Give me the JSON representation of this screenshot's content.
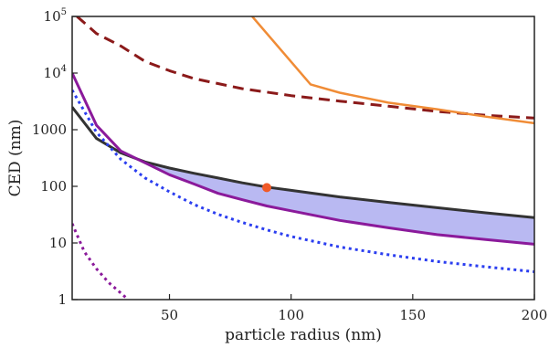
{
  "chart_data": {
    "type": "line",
    "title": "",
    "xlabel": "particle radius (nm)",
    "ylabel": "CED (nm)",
    "xlim": [
      10,
      200
    ],
    "ylim": [
      1,
      100000
    ],
    "yscale": "log",
    "grid": false,
    "x_ticks": [
      {
        "value": 50,
        "label": "50"
      },
      {
        "value": 100,
        "label": "100"
      },
      {
        "value": 150,
        "label": "150"
      },
      {
        "value": 200,
        "label": "200"
      }
    ],
    "y_ticks": [
      {
        "value": 1,
        "label": "1"
      },
      {
        "value": 10,
        "label": "10"
      },
      {
        "value": 100,
        "label": "100"
      },
      {
        "value": 1000,
        "label": "1000"
      },
      {
        "value": 10000,
        "base": "10",
        "exp": "4"
      },
      {
        "value": 100000,
        "base": "10",
        "exp": "5"
      }
    ],
    "shaded_band": {
      "color": "#b9b9f2",
      "x_from": 40,
      "x_to": 200,
      "upper_series_index": 0,
      "lower_series_index": 1
    },
    "series": [
      {
        "color": "#333333",
        "style": "solid",
        "width": 3,
        "x": [
          10,
          20,
          30,
          40,
          50,
          60,
          70,
          80,
          90,
          100,
          120,
          140,
          160,
          180,
          200
        ],
        "y": [
          2500,
          700,
          390,
          270,
          210,
          170,
          140,
          115,
          97,
          85,
          65,
          52,
          42,
          34,
          28
        ]
      },
      {
        "color": "#8b1a9b",
        "style": "solid",
        "width": 3,
        "x": [
          10,
          20,
          30,
          40,
          50,
          60,
          70,
          80,
          90,
          100,
          120,
          140,
          160,
          180,
          200
        ],
        "y": [
          10000,
          1200,
          420,
          260,
          160,
          110,
          75,
          58,
          45,
          37,
          25,
          18.5,
          14,
          11.5,
          9.5
        ]
      },
      {
        "color": "#2b3ef0",
        "style": "dotted",
        "width": 3,
        "x": [
          10,
          20,
          30,
          40,
          50,
          60,
          70,
          80,
          90,
          100,
          120,
          140,
          160,
          180,
          200
        ],
        "y": [
          5000,
          900,
          300,
          140,
          80,
          48,
          32,
          23,
          17,
          13,
          8.5,
          6.2,
          4.7,
          3.8,
          3.1
        ]
      },
      {
        "color": "#8b1a9b",
        "style": "dotted",
        "width": 3,
        "x": [
          10,
          15,
          20,
          25,
          30,
          33
        ],
        "y": [
          22,
          7,
          3.5,
          2,
          1.3,
          1.0
        ]
      },
      {
        "color": "#8b1a1a",
        "style": "dashed",
        "width": 3,
        "x": [
          12,
          20,
          30,
          40,
          50,
          60,
          80,
          100,
          120,
          140,
          160,
          180,
          200
        ],
        "y": [
          100000,
          50000,
          30000,
          16000,
          11000,
          8000,
          5300,
          4000,
          3200,
          2600,
          2100,
          1800,
          1600
        ]
      },
      {
        "color": "#f08c36",
        "style": "solid",
        "width": 2.5,
        "x": [
          84,
          108,
          120,
          140,
          160,
          180,
          200
        ],
        "y": [
          100000,
          6300,
          4500,
          3000,
          2300,
          1700,
          1300
        ]
      }
    ],
    "marker": {
      "x": 90,
      "y": 95,
      "color": "#f05a28"
    }
  }
}
